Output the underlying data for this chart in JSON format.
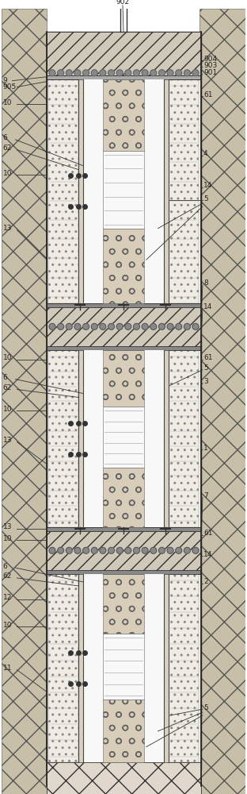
{
  "fig_width": 3.12,
  "fig_height": 10.0,
  "dpi": 100,
  "bg_color": "#ffffff",
  "rock_fc": "#c8bfa8",
  "stemming_fc": "#f0ece4",
  "air_fc": "#f8f8f8",
  "explosive_fc": "#d8cdb8",
  "plug_fc": "#c8c0b0",
  "top_fc": "#b8b0a0"
}
